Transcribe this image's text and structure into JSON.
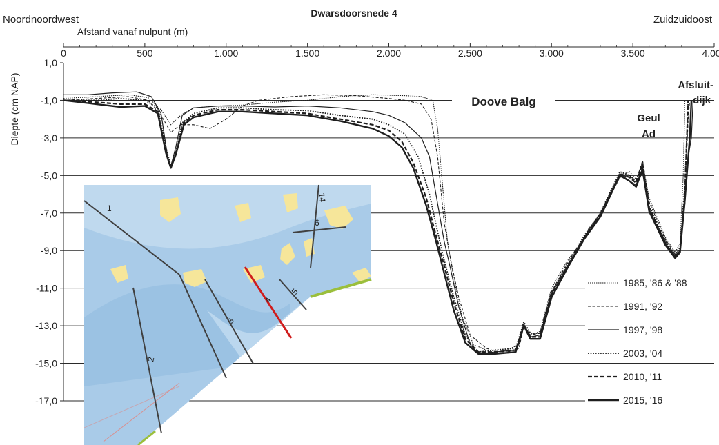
{
  "chart_data": {
    "type": "line",
    "title": "Dwarsdoorsnede 4",
    "left_label": "Noordnoordwest",
    "right_label": "Zuidzuidoost",
    "xlabel": "Afstand vanaf nulpunt  (m)",
    "ylabel": "Diepte (cm NAP)",
    "xlim": [
      0,
      4000
    ],
    "ylim": [
      -17,
      1
    ],
    "x_ticks": [
      "0",
      "500",
      "1.000",
      "1.500",
      "2.000",
      "2.500",
      "3.000",
      "3.500",
      "4.000"
    ],
    "x_tick_values": [
      0,
      500,
      1000,
      1500,
      2000,
      2500,
      3000,
      3500,
      4000
    ],
    "y_ticks": [
      "1,0",
      "-1,0",
      "-3,0",
      "-5,0",
      "-7,0",
      "-9,0",
      "-11,0",
      "-13,0",
      "-15,0",
      "-17,0"
    ],
    "y_tick_values": [
      1,
      -1,
      -3,
      -5,
      -7,
      -9,
      -11,
      -13,
      -15,
      -17
    ],
    "grid": "horizontal",
    "legend_position": "bottom-right",
    "annotations": [
      "Doove Balg",
      "Geul",
      "Ad",
      "Afsluit-",
      "dijk"
    ],
    "series": [
      {
        "name": "1985, '86 & '88",
        "style": "dotted-thin",
        "points": [
          [
            0,
            -0.9
          ],
          [
            200,
            -0.8
          ],
          [
            400,
            -0.7
          ],
          [
            520,
            -0.85
          ],
          [
            600,
            -1.5
          ],
          [
            660,
            -2.3
          ],
          [
            720,
            -1.8
          ],
          [
            800,
            -1.4
          ],
          [
            950,
            -1.3
          ],
          [
            1100,
            -1.25
          ],
          [
            1300,
            -1.1
          ],
          [
            1500,
            -1.0
          ],
          [
            1700,
            -0.8
          ],
          [
            1900,
            -0.7
          ],
          [
            2100,
            -0.75
          ],
          [
            2200,
            -0.8
          ],
          [
            2270,
            -1.0
          ],
          [
            2300,
            -2.5
          ],
          [
            2330,
            -5.5
          ],
          [
            2360,
            -8.5
          ],
          [
            2400,
            -10.5
          ],
          [
            2450,
            -12.5
          ],
          [
            2520,
            -14.0
          ],
          [
            2600,
            -14.3
          ],
          [
            2700,
            -14.4
          ],
          [
            2800,
            -14.0
          ],
          [
            2830,
            -13.0
          ],
          [
            2870,
            -13.5
          ],
          [
            2930,
            -13.3
          ],
          [
            3000,
            -11.0
          ],
          [
            3100,
            -9.5
          ],
          [
            3200,
            -8.4
          ],
          [
            3300,
            -7.0
          ],
          [
            3420,
            -5.0
          ],
          [
            3480,
            -4.8
          ],
          [
            3520,
            -5.2
          ],
          [
            3560,
            -4.4
          ],
          [
            3600,
            -6.2
          ],
          [
            3700,
            -8.3
          ],
          [
            3760,
            -9.1
          ],
          [
            3790,
            -8.6
          ],
          [
            3810,
            -5.0
          ],
          [
            3820,
            -1.0
          ]
        ]
      },
      {
        "name": "1991, '92",
        "style": "dashed-thin",
        "points": [
          [
            0,
            -1.0
          ],
          [
            200,
            -0.9
          ],
          [
            400,
            -0.8
          ],
          [
            520,
            -1.0
          ],
          [
            600,
            -1.8
          ],
          [
            660,
            -2.7
          ],
          [
            720,
            -2.3
          ],
          [
            800,
            -2.3
          ],
          [
            900,
            -2.5
          ],
          [
            1000,
            -2.0
          ],
          [
            1100,
            -1.3
          ],
          [
            1200,
            -1.0
          ],
          [
            1400,
            -0.8
          ],
          [
            1600,
            -0.7
          ],
          [
            1800,
            -0.75
          ],
          [
            2000,
            -0.9
          ],
          [
            2100,
            -1.0
          ],
          [
            2200,
            -1.2
          ],
          [
            2260,
            -2.0
          ],
          [
            2300,
            -4.0
          ],
          [
            2340,
            -7.5
          ],
          [
            2380,
            -9.5
          ],
          [
            2430,
            -11.5
          ],
          [
            2500,
            -13.5
          ],
          [
            2600,
            -14.2
          ],
          [
            2700,
            -14.5
          ],
          [
            2800,
            -14.2
          ],
          [
            2830,
            -13.0
          ],
          [
            2870,
            -13.5
          ],
          [
            2930,
            -13.4
          ],
          [
            3000,
            -11.2
          ],
          [
            3100,
            -9.6
          ],
          [
            3200,
            -8.3
          ],
          [
            3300,
            -7.1
          ],
          [
            3420,
            -5.1
          ],
          [
            3480,
            -5.0
          ],
          [
            3520,
            -5.3
          ],
          [
            3560,
            -4.2
          ],
          [
            3600,
            -6.4
          ],
          [
            3700,
            -8.4
          ],
          [
            3760,
            -9.2
          ],
          [
            3790,
            -8.9
          ],
          [
            3820,
            -6.0
          ],
          [
            3840,
            -2.0
          ],
          [
            3850,
            -1.0
          ]
        ]
      },
      {
        "name": "1997, '98",
        "style": "solid-thin",
        "points": [
          [
            0,
            -0.7
          ],
          [
            150,
            -0.7
          ],
          [
            300,
            -0.6
          ],
          [
            450,
            -0.55
          ],
          [
            540,
            -0.8
          ],
          [
            600,
            -1.7
          ],
          [
            640,
            -4.0
          ],
          [
            660,
            -4.5
          ],
          [
            690,
            -3.5
          ],
          [
            730,
            -1.8
          ],
          [
            800,
            -1.4
          ],
          [
            950,
            -1.3
          ],
          [
            1100,
            -1.3
          ],
          [
            1300,
            -1.35
          ],
          [
            1500,
            -1.3
          ],
          [
            1700,
            -1.4
          ],
          [
            1900,
            -1.6
          ],
          [
            2000,
            -1.8
          ],
          [
            2100,
            -2.2
          ],
          [
            2200,
            -3.0
          ],
          [
            2250,
            -4.0
          ],
          [
            2300,
            -6.5
          ],
          [
            2340,
            -8.5
          ],
          [
            2380,
            -10.0
          ],
          [
            2430,
            -12.0
          ],
          [
            2500,
            -14.0
          ],
          [
            2550,
            -14.5
          ],
          [
            2650,
            -14.4
          ],
          [
            2780,
            -14.3
          ],
          [
            2830,
            -12.9
          ],
          [
            2870,
            -13.6
          ],
          [
            2930,
            -13.5
          ],
          [
            3000,
            -11.3
          ],
          [
            3100,
            -9.8
          ],
          [
            3200,
            -8.3
          ],
          [
            3300,
            -7.0
          ],
          [
            3420,
            -4.9
          ],
          [
            3480,
            -5.3
          ],
          [
            3520,
            -5.5
          ],
          [
            3560,
            -4.6
          ],
          [
            3600,
            -6.8
          ],
          [
            3700,
            -8.6
          ],
          [
            3760,
            -9.3
          ],
          [
            3790,
            -9.0
          ],
          [
            3820,
            -6.5
          ],
          [
            3840,
            -4.0
          ],
          [
            3860,
            -3.0
          ],
          [
            3870,
            -1.0
          ]
        ]
      },
      {
        "name": "2003, '04",
        "style": "dotted-medium",
        "points": [
          [
            0,
            -1.0
          ],
          [
            200,
            -1.0
          ],
          [
            350,
            -0.9
          ],
          [
            500,
            -1.0
          ],
          [
            580,
            -1.4
          ],
          [
            630,
            -3.5
          ],
          [
            660,
            -4.5
          ],
          [
            690,
            -3.8
          ],
          [
            730,
            -2.2
          ],
          [
            800,
            -1.7
          ],
          [
            950,
            -1.4
          ],
          [
            1100,
            -1.4
          ],
          [
            1300,
            -1.5
          ],
          [
            1500,
            -1.55
          ],
          [
            1700,
            -1.8
          ],
          [
            1900,
            -2.0
          ],
          [
            2000,
            -2.3
          ],
          [
            2100,
            -2.8
          ],
          [
            2180,
            -4.0
          ],
          [
            2250,
            -6.0
          ],
          [
            2300,
            -8.0
          ],
          [
            2340,
            -9.5
          ],
          [
            2400,
            -11.5
          ],
          [
            2470,
            -13.5
          ],
          [
            2550,
            -14.4
          ],
          [
            2650,
            -14.3
          ],
          [
            2780,
            -14.2
          ],
          [
            2830,
            -12.8
          ],
          [
            2870,
            -13.4
          ],
          [
            2930,
            -13.4
          ],
          [
            3000,
            -11.2
          ],
          [
            3100,
            -9.7
          ],
          [
            3200,
            -8.2
          ],
          [
            3300,
            -7.0
          ],
          [
            3420,
            -4.8
          ],
          [
            3480,
            -5.0
          ],
          [
            3520,
            -5.3
          ],
          [
            3560,
            -4.3
          ],
          [
            3600,
            -6.6
          ],
          [
            3700,
            -8.5
          ],
          [
            3760,
            -9.2
          ],
          [
            3790,
            -8.8
          ],
          [
            3820,
            -5.5
          ],
          [
            3840,
            -1.0
          ]
        ]
      },
      {
        "name": "2010, '11",
        "style": "dashed-thick",
        "points": [
          [
            0,
            -1.0
          ],
          [
            200,
            -1.1
          ],
          [
            350,
            -1.2
          ],
          [
            500,
            -1.2
          ],
          [
            580,
            -1.6
          ],
          [
            630,
            -3.8
          ],
          [
            660,
            -4.6
          ],
          [
            690,
            -3.8
          ],
          [
            740,
            -2.2
          ],
          [
            800,
            -1.8
          ],
          [
            950,
            -1.5
          ],
          [
            1100,
            -1.5
          ],
          [
            1300,
            -1.6
          ],
          [
            1500,
            -1.7
          ],
          [
            1700,
            -2.0
          ],
          [
            1900,
            -2.3
          ],
          [
            2000,
            -2.6
          ],
          [
            2080,
            -3.2
          ],
          [
            2150,
            -4.3
          ],
          [
            2230,
            -6.2
          ],
          [
            2290,
            -8.2
          ],
          [
            2340,
            -9.8
          ],
          [
            2400,
            -11.8
          ],
          [
            2470,
            -13.7
          ],
          [
            2550,
            -14.4
          ],
          [
            2650,
            -14.4
          ],
          [
            2780,
            -14.3
          ],
          [
            2830,
            -13.0
          ],
          [
            2870,
            -13.6
          ],
          [
            2930,
            -13.6
          ],
          [
            3000,
            -11.4
          ],
          [
            3100,
            -9.8
          ],
          [
            3200,
            -8.3
          ],
          [
            3300,
            -7.1
          ],
          [
            3420,
            -4.9
          ],
          [
            3480,
            -5.1
          ],
          [
            3520,
            -5.4
          ],
          [
            3560,
            -4.4
          ],
          [
            3600,
            -6.7
          ],
          [
            3700,
            -8.6
          ],
          [
            3760,
            -9.3
          ],
          [
            3790,
            -9.0
          ],
          [
            3820,
            -6.0
          ],
          [
            3840,
            -1.0
          ]
        ]
      },
      {
        "name": "2015, '16",
        "style": "solid-thick",
        "points": [
          [
            0,
            -1.0
          ],
          [
            200,
            -1.2
          ],
          [
            350,
            -1.35
          ],
          [
            500,
            -1.3
          ],
          [
            580,
            -1.7
          ],
          [
            630,
            -3.8
          ],
          [
            660,
            -4.6
          ],
          [
            690,
            -3.9
          ],
          [
            740,
            -2.3
          ],
          [
            800,
            -1.9
          ],
          [
            950,
            -1.6
          ],
          [
            1100,
            -1.6
          ],
          [
            1300,
            -1.7
          ],
          [
            1500,
            -1.8
          ],
          [
            1700,
            -2.1
          ],
          [
            1900,
            -2.5
          ],
          [
            2000,
            -2.9
          ],
          [
            2080,
            -3.5
          ],
          [
            2150,
            -4.6
          ],
          [
            2230,
            -6.6
          ],
          [
            2290,
            -8.5
          ],
          [
            2340,
            -10.2
          ],
          [
            2400,
            -12.2
          ],
          [
            2470,
            -13.9
          ],
          [
            2550,
            -14.5
          ],
          [
            2650,
            -14.5
          ],
          [
            2780,
            -14.4
          ],
          [
            2830,
            -13.0
          ],
          [
            2870,
            -13.7
          ],
          [
            2930,
            -13.7
          ],
          [
            3000,
            -11.5
          ],
          [
            3100,
            -9.9
          ],
          [
            3200,
            -8.4
          ],
          [
            3300,
            -7.2
          ],
          [
            3420,
            -5.0
          ],
          [
            3480,
            -5.3
          ],
          [
            3520,
            -5.6
          ],
          [
            3560,
            -4.7
          ],
          [
            3600,
            -6.9
          ],
          [
            3700,
            -8.7
          ],
          [
            3760,
            -9.4
          ],
          [
            3790,
            -9.1
          ],
          [
            3820,
            -6.3
          ],
          [
            3850,
            -3.0
          ],
          [
            3860,
            -1.0
          ]
        ]
      }
    ]
  },
  "map_inset": {
    "transect_labels": [
      "1",
      "2",
      "3",
      "4",
      "5",
      "6",
      "14"
    ],
    "highlight_transect": "4",
    "colors": {
      "water": "#a9cbe8",
      "shoal": "#f6e69a",
      "shallow": "#c9e0f2",
      "land": "#9bbf3c",
      "highlight": "#d01c1c",
      "transect": "#404040"
    }
  }
}
